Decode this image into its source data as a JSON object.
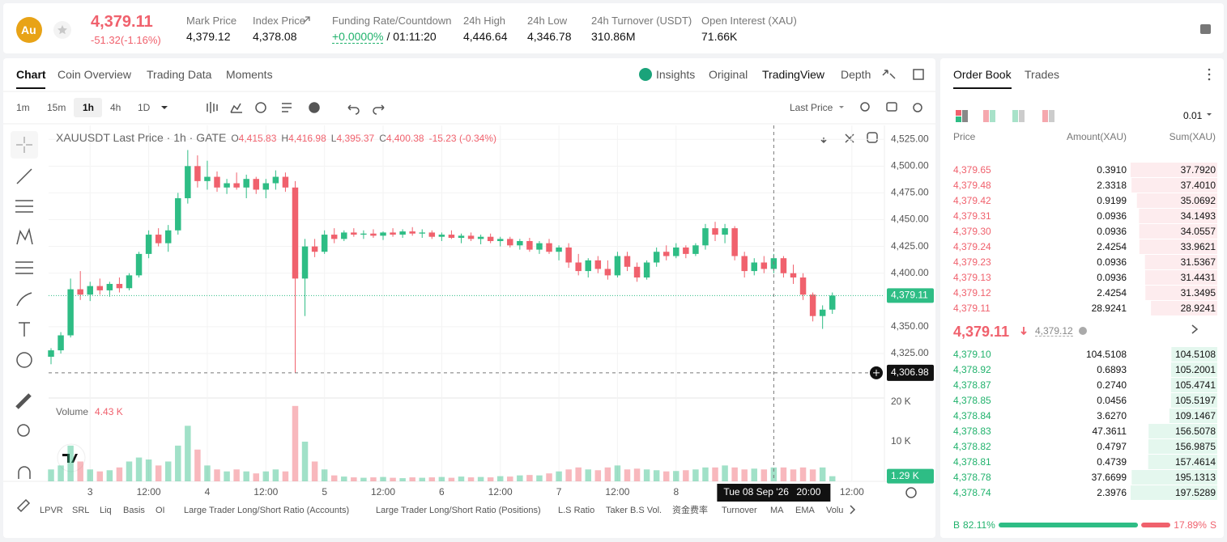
{
  "header": {
    "symbol_icon": "Au",
    "price": "4,379.11",
    "change": "-51.32(-1.16%)",
    "stats": [
      {
        "label": "Mark Price",
        "value": "4,379.12"
      },
      {
        "label": "Index Price",
        "value": "4,378.08"
      },
      {
        "label": "Funding Rate/Countdown",
        "value": "+0.0000%",
        "extra": "/ 01:11:20"
      },
      {
        "label": "24h High",
        "value": "4,446.64"
      },
      {
        "label": "24h Low",
        "value": "4,346.78"
      },
      {
        "label": "24h Turnover (USDT)",
        "value": "310.86M"
      },
      {
        "label": "Open Interest (XAU)",
        "value": "71.66K"
      }
    ]
  },
  "chart_tabs": [
    "Chart",
    "Coin Overview",
    "Trading Data",
    "Moments"
  ],
  "view_tabs": [
    "Insights",
    "Original",
    "TradingView",
    "Depth"
  ],
  "intervals": [
    "1m",
    "15m",
    "1h",
    "4h",
    "1D"
  ],
  "price_type": "Last Price",
  "indicators": [
    "LPVR",
    "SRL",
    "Liq",
    "Basis",
    "OI",
    "Large Trader Long/Short Ratio (Accounts)",
    "Large Trader Long/Short Ratio (Positions)",
    "L.S Ratio",
    "Taker B.S Vol.",
    "资金费率",
    "Turnover",
    "MA",
    "EMA",
    "Volu"
  ],
  "chart_data": {
    "type": "candlestick",
    "title": "XAUUSDT Last Price · 1h · GATE",
    "legend": [
      {
        "key": "O",
        "value": "4,415.83"
      },
      {
        "key": "H",
        "value": "4,416.98"
      },
      {
        "key": "L",
        "value": "4,395.37"
      },
      {
        "key": "C",
        "value": "4,400.38"
      }
    ],
    "legend_change": "-15.23 (-0.34%)",
    "up_color": "#2ebd85",
    "down_color": "#f0616d",
    "ohlc": [
      [
        4322,
        4330,
        4315,
        4328
      ],
      [
        4328,
        4345,
        4325,
        4342
      ],
      [
        4342,
        4395,
        4340,
        4385
      ],
      [
        4385,
        4402,
        4375,
        4380
      ],
      [
        4380,
        4392,
        4374,
        4388
      ],
      [
        4388,
        4395,
        4380,
        4384
      ],
      [
        4384,
        4392,
        4378,
        4390
      ],
      [
        4390,
        4396,
        4382,
        4386
      ],
      [
        4386,
        4400,
        4384,
        4398
      ],
      [
        4398,
        4420,
        4396,
        4418
      ],
      [
        4418,
        4440,
        4414,
        4436
      ],
      [
        4436,
        4442,
        4425,
        4428
      ],
      [
        4428,
        4445,
        4420,
        4440
      ],
      [
        4440,
        4475,
        4436,
        4470
      ],
      [
        4470,
        4515,
        4465,
        4500
      ],
      [
        4500,
        4510,
        4480,
        4486
      ],
      [
        4486,
        4505,
        4478,
        4490
      ],
      [
        4490,
        4495,
        4476,
        4480
      ],
      [
        4480,
        4488,
        4474,
        4484
      ],
      [
        4484,
        4494,
        4478,
        4480
      ],
      [
        4480,
        4492,
        4470,
        4488
      ],
      [
        4488,
        4490,
        4474,
        4478
      ],
      [
        4478,
        4488,
        4470,
        4484
      ],
      [
        4484,
        4496,
        4478,
        4490
      ],
      [
        4490,
        4494,
        4476,
        4480
      ],
      [
        4480,
        4486,
        4306.98,
        4395
      ],
      [
        4395,
        4432,
        4360,
        4425
      ],
      [
        4425,
        4432,
        4415,
        4420
      ],
      [
        4420,
        4440,
        4418,
        4436
      ],
      [
        4436,
        4442,
        4428,
        4432
      ],
      [
        4432,
        4440,
        4430,
        4438
      ],
      [
        4438,
        4442,
        4434,
        4436
      ],
      [
        4436,
        4440,
        4432,
        4437
      ],
      [
        4437,
        4441,
        4433,
        4435
      ],
      [
        4435,
        4439,
        4431,
        4438
      ],
      [
        4438,
        4442,
        4434,
        4436
      ],
      [
        4436,
        4441,
        4433,
        4439
      ],
      [
        4439,
        4443,
        4435,
        4437
      ],
      [
        4437,
        4441,
        4433,
        4438
      ],
      [
        4438,
        4440,
        4432,
        4434
      ],
      [
        4434,
        4438,
        4430,
        4436
      ],
      [
        4436,
        4440,
        4432,
        4433
      ],
      [
        4433,
        4437,
        4428,
        4435
      ],
      [
        4435,
        4438,
        4430,
        4432
      ],
      [
        4432,
        4436,
        4427,
        4434
      ],
      [
        4434,
        4437,
        4428,
        4430
      ],
      [
        4430,
        4434,
        4425,
        4432
      ],
      [
        4432,
        4434,
        4424,
        4426
      ],
      [
        4426,
        4432,
        4422,
        4430
      ],
      [
        4430,
        4433,
        4420,
        4422
      ],
      [
        4422,
        4430,
        4418,
        4428
      ],
      [
        4428,
        4432,
        4418,
        4420
      ],
      [
        4420,
        4426,
        4412,
        4424
      ],
      [
        4424,
        4428,
        4405,
        4410
      ],
      [
        4410,
        4418,
        4398,
        4402
      ],
      [
        4402,
        4414,
        4396,
        4412
      ],
      [
        4412,
        4416,
        4400,
        4404
      ],
      [
        4404,
        4412,
        4394,
        4398
      ],
      [
        4398,
        4420,
        4396,
        4416
      ],
      [
        4416,
        4420,
        4402,
        4406
      ],
      [
        4406,
        4410,
        4392,
        4396
      ],
      [
        4396,
        4412,
        4394,
        4410
      ],
      [
        4410,
        4424,
        4406,
        4420
      ],
      [
        4420,
        4426,
        4412,
        4416
      ],
      [
        4416,
        4428,
        4414,
        4424
      ],
      [
        4424,
        4426,
        4414,
        4418
      ],
      [
        4418,
        4428,
        4416,
        4426
      ],
      [
        4426,
        4446,
        4422,
        4442
      ],
      [
        4442,
        4448,
        4430,
        4436
      ],
      [
        4436,
        4446,
        4428,
        4442
      ],
      [
        4442,
        4444,
        4412,
        4416
      ],
      [
        4416,
        4420,
        4396,
        4402
      ],
      [
        4402,
        4414,
        4398,
        4410
      ],
      [
        4410,
        4416,
        4400,
        4404
      ],
      [
        4404,
        4418,
        4400,
        4414
      ],
      [
        4414,
        4416,
        4396,
        4400
      ],
      [
        4400,
        4408,
        4390,
        4396
      ],
      [
        4396,
        4400,
        4375,
        4380
      ],
      [
        4380,
        4382,
        4355,
        4360
      ],
      [
        4360,
        4370,
        4348,
        4366
      ],
      [
        4366,
        4382,
        4362,
        4379.11
      ]
    ],
    "xlim": [
      -0.25,
      85.33
    ],
    "xticks": [
      {
        "value": 4,
        "label": "3"
      },
      {
        "value": 10,
        "label": "12:00"
      },
      {
        "value": 16,
        "label": "4"
      },
      {
        "value": 22,
        "label": "12:00"
      },
      {
        "value": 28,
        "label": "5"
      },
      {
        "value": 34,
        "label": "12:00"
      },
      {
        "value": 40,
        "label": "6"
      },
      {
        "value": 46,
        "label": "12:00"
      },
      {
        "value": 52,
        "label": "7"
      },
      {
        "value": 58,
        "label": "12:00"
      },
      {
        "value": 64,
        "label": "8"
      },
      {
        "value": 82,
        "label": "12:00"
      }
    ],
    "ylim": [
      4285,
      4538
    ],
    "yticks": [
      {
        "value": 4325,
        "label": "4,325.00"
      },
      {
        "value": 4350,
        "label": "4,350.00"
      },
      {
        "value": 4400,
        "label": "4,400.00"
      },
      {
        "value": 4425,
        "label": "4,425.00"
      },
      {
        "value": 4450,
        "label": "4,450.00"
      },
      {
        "value": 4475,
        "label": "4,475.00"
      },
      {
        "value": 4500,
        "label": "4,500.00"
      },
      {
        "value": 4525,
        "label": "4,525.00"
      }
    ],
    "grid": true,
    "last_price": {
      "value": 4379.11,
      "label": "4,379.11"
    },
    "crosshair": {
      "x": 74,
      "price": {
        "value": 4306.98,
        "label": "4,306.98"
      },
      "date": "Tue 08 Sep '26",
      "time": "20:00"
    },
    "volume_title": "Volume",
    "volume_value": "4.43 K",
    "volume": [
      3000,
      4000,
      9000,
      5000,
      3000,
      2500,
      2800,
      3500,
      5000,
      6000,
      5500,
      4000,
      5000,
      9000,
      14000,
      8000,
      4000,
      3000,
      2500,
      3000,
      2500,
      2000,
      2500,
      3000,
      2500,
      19000,
      10000,
      5000,
      3000,
      1500,
      1200,
      1000,
      900,
      1000,
      1100,
      900,
      800,
      1000,
      900,
      1000,
      1100,
      900,
      1200,
      1000,
      1100,
      1000,
      1300,
      1200,
      1500,
      1600,
      1500,
      2000,
      2500,
      3000,
      3500,
      3000,
      2800,
      3500,
      4000,
      3000,
      3200,
      3000,
      2800,
      2500,
      2600,
      2800,
      3000,
      3500,
      3500,
      4000,
      3500,
      3000,
      3200,
      3000,
      3500,
      3500,
      3000,
      3500,
      3000,
      3500,
      1290
    ],
    "volume_lim": [
      0,
      21000
    ],
    "volume_ticks": [
      {
        "value": 10000,
        "label": "10 K"
      },
      {
        "value": 20000,
        "label": "20 K"
      }
    ],
    "volume_current": {
      "value": 1290,
      "label": "1.29 K"
    }
  },
  "order_book": {
    "tabs": [
      "Order Book",
      "Trades"
    ],
    "precision": "0.01",
    "columns": [
      "Price",
      "Amount(XAU)",
      "Sum(XAU)"
    ],
    "asks": [
      {
        "price": "4,379.65",
        "amount": "0.3910",
        "sum": {
          "value": 37.792,
          "label": "37.7920"
        }
      },
      {
        "price": "4,379.48",
        "amount": "2.3318",
        "sum": {
          "value": 37.401,
          "label": "37.4010"
        }
      },
      {
        "price": "4,379.42",
        "amount": "0.9199",
        "sum": {
          "value": 35.0692,
          "label": "35.0692"
        }
      },
      {
        "price": "4,379.31",
        "amount": "0.0936",
        "sum": {
          "value": 34.1493,
          "label": "34.1493"
        }
      },
      {
        "price": "4,379.30",
        "amount": "0.0936",
        "sum": {
          "value": 34.0557,
          "label": "34.0557"
        }
      },
      {
        "price": "4,379.24",
        "amount": "2.4254",
        "sum": {
          "value": 33.9621,
          "label": "33.9621"
        }
      },
      {
        "price": "4,379.23",
        "amount": "0.0936",
        "sum": {
          "value": 31.5367,
          "label": "31.5367"
        }
      },
      {
        "price": "4,379.13",
        "amount": "0.0936",
        "sum": {
          "value": 31.4431,
          "label": "31.4431"
        }
      },
      {
        "price": "4,379.12",
        "amount": "2.4254",
        "sum": {
          "value": 31.3495,
          "label": "31.3495"
        }
      },
      {
        "price": "4,379.11",
        "amount": "28.9241",
        "sum": {
          "value": 28.9241,
          "label": "28.9241"
        }
      }
    ],
    "mid_price": "4,379.11",
    "mark_price": "4,379.12",
    "bids": [
      {
        "price": "4,379.10",
        "amount": "104.5108",
        "sum": {
          "value": 104.5108,
          "label": "104.5108"
        }
      },
      {
        "price": "4,378.92",
        "amount": "0.6893",
        "sum": {
          "value": 105.2001,
          "label": "105.2001"
        }
      },
      {
        "price": "4,378.87",
        "amount": "0.2740",
        "sum": {
          "value": 105.4741,
          "label": "105.4741"
        }
      },
      {
        "price": "4,378.85",
        "amount": "0.0456",
        "sum": {
          "value": 105.5197,
          "label": "105.5197"
        }
      },
      {
        "price": "4,378.84",
        "amount": "3.6270",
        "sum": {
          "value": 109.1467,
          "label": "109.1467"
        }
      },
      {
        "price": "4,378.83",
        "amount": "47.3611",
        "sum": {
          "value": 156.5078,
          "label": "156.5078"
        }
      },
      {
        "price": "4,378.82",
        "amount": "0.4797",
        "sum": {
          "value": 156.9875,
          "label": "156.9875"
        }
      },
      {
        "price": "4,378.81",
        "amount": "0.4739",
        "sum": {
          "value": 157.4614,
          "label": "157.4614"
        }
      },
      {
        "price": "4,378.78",
        "amount": "37.6699",
        "sum": {
          "value": 195.1313,
          "label": "195.1313"
        }
      },
      {
        "price": "4,378.74",
        "amount": "2.3976",
        "sum": {
          "value": 197.5289,
          "label": "197.5289"
        }
      }
    ],
    "buy_key": "B",
    "sell_key": "S",
    "buy_ratio": {
      "value": 82.11,
      "label": "82.11%"
    },
    "sell_ratio": {
      "value": 17.89,
      "label": "17.89%"
    }
  }
}
